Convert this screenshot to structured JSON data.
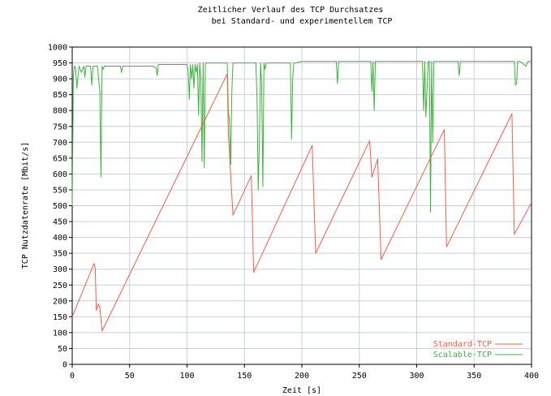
{
  "chart_data": {
    "type": "line",
    "title": "Zeitlicher Verlauf des TCP Durchsatzes",
    "subtitle": "bei Standard- und experimentellem TCP",
    "xlabel": "Zeit [s]",
    "ylabel": "TCP Nutzdatenrate [Mbit/s]",
    "xlim": [
      0,
      400
    ],
    "ylim": [
      0,
      1000
    ],
    "x_ticks": [
      0,
      50,
      100,
      150,
      200,
      250,
      300,
      350,
      400
    ],
    "y_ticks": [
      0,
      50,
      100,
      150,
      200,
      250,
      300,
      350,
      400,
      450,
      500,
      550,
      600,
      650,
      700,
      750,
      800,
      850,
      900,
      950,
      1000
    ],
    "grid": true,
    "legend_position": "bottom-right",
    "series": [
      {
        "name": "Standard-TCP",
        "color": "#ff5a46",
        "x": [
          0,
          19,
          20,
          21,
          23,
          24,
          26,
          135,
          136,
          140,
          156,
          158,
          209,
          212,
          259,
          261,
          266,
          269,
          324,
          326,
          383,
          385,
          400
        ],
        "y": [
          150,
          318,
          305,
          170,
          190,
          180,
          105,
          915,
          725,
          470,
          595,
          290,
          690,
          350,
          705,
          590,
          648,
          330,
          740,
          370,
          790,
          410,
          510
        ]
      },
      {
        "name": "Scalable-TCP",
        "color": "#3cb43c",
        "x": [
          0,
          1,
          2,
          3,
          4,
          6,
          8,
          10,
          11,
          12,
          16,
          17,
          18,
          22,
          24,
          25,
          26,
          27,
          28,
          30,
          42,
          43,
          44,
          70,
          73,
          74,
          75,
          90,
          100,
          101,
          102,
          103,
          104,
          105,
          106,
          107,
          108,
          109,
          110,
          111,
          112,
          113,
          114,
          115,
          116,
          118,
          135,
          136,
          137,
          138,
          139,
          140,
          160,
          161,
          162,
          163,
          164,
          165,
          166,
          167,
          168,
          169,
          170,
          175,
          190,
          191,
          192,
          193,
          194,
          200,
          210,
          215,
          230,
          231,
          232,
          260,
          261,
          262,
          263,
          264,
          265,
          280,
          300,
          305,
          306,
          307,
          308,
          310,
          311,
          312,
          313,
          314,
          315,
          316,
          330,
          336,
          337,
          338,
          340,
          380,
          385,
          386,
          387,
          388,
          390,
          395,
          397,
          398,
          400
        ],
        "y": [
          500,
          910,
          940,
          935,
          870,
          940,
          920,
          940,
          905,
          940,
          940,
          880,
          940,
          940,
          860,
          590,
          940,
          930,
          940,
          940,
          940,
          920,
          940,
          940,
          935,
          910,
          945,
          945,
          945,
          925,
          835,
          945,
          900,
          945,
          870,
          945,
          920,
          945,
          785,
          950,
          900,
          640,
          950,
          620,
          950,
          950,
          950,
          800,
          760,
          630,
          860,
          950,
          950,
          830,
          550,
          700,
          950,
          880,
          560,
          950,
          930,
          950,
          950,
          950,
          950,
          710,
          900,
          950,
          950,
          955,
          955,
          955,
          955,
          885,
          955,
          955,
          860,
          955,
          800,
          955,
          955,
          955,
          955,
          955,
          800,
          955,
          780,
          955,
          955,
          480,
          955,
          700,
          955,
          955,
          955,
          955,
          910,
          955,
          955,
          955,
          955,
          880,
          885,
          955,
          955,
          940,
          955,
          955,
          955
        ]
      }
    ]
  }
}
